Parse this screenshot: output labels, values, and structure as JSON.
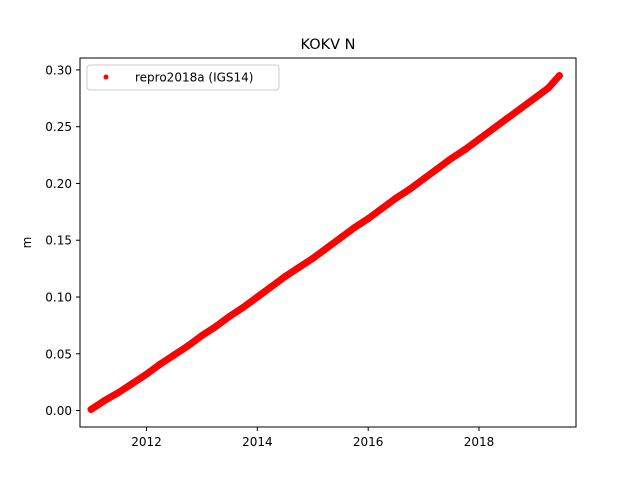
{
  "chart_data": {
    "type": "scatter",
    "title": "KOKV N",
    "xlabel": "",
    "ylabel": "m",
    "xlim": [
      2010.8,
      2019.75
    ],
    "ylim": [
      -0.0145,
      0.3105
    ],
    "xticks": [
      2012,
      2014,
      2016,
      2018
    ],
    "xtick_labels": [
      "2012",
      "2014",
      "2016",
      "2018"
    ],
    "yticks": [
      0.0,
      0.05,
      0.1,
      0.15,
      0.2,
      0.25,
      0.3
    ],
    "ytick_labels": [
      "0.00",
      "0.05",
      "0.10",
      "0.15",
      "0.20",
      "0.25",
      "0.30"
    ],
    "grid": false,
    "legend_position": "upper-left",
    "series": [
      {
        "name": "repro2018a (IGS14)",
        "color": "#ff0000",
        "marker": "circle",
        "x": [
          2011.0,
          2011.25,
          2011.5,
          2011.75,
          2012.0,
          2012.25,
          2012.5,
          2012.75,
          2013.0,
          2013.25,
          2013.5,
          2013.75,
          2014.0,
          2014.25,
          2014.5,
          2014.75,
          2015.0,
          2015.25,
          2015.5,
          2015.75,
          2016.0,
          2016.25,
          2016.5,
          2016.75,
          2017.0,
          2017.25,
          2017.5,
          2017.75,
          2018.0,
          2018.25,
          2018.5,
          2018.75,
          2019.0,
          2019.25,
          2019.45
        ],
        "y": [
          0.001,
          0.009,
          0.016,
          0.024,
          0.032,
          0.041,
          0.049,
          0.057,
          0.066,
          0.074,
          0.083,
          0.091,
          0.1,
          0.109,
          0.118,
          0.126,
          0.134,
          0.143,
          0.152,
          0.161,
          0.169,
          0.178,
          0.187,
          0.195,
          0.204,
          0.213,
          0.222,
          0.23,
          0.239,
          0.248,
          0.257,
          0.266,
          0.275,
          0.284,
          0.295
        ]
      }
    ]
  }
}
